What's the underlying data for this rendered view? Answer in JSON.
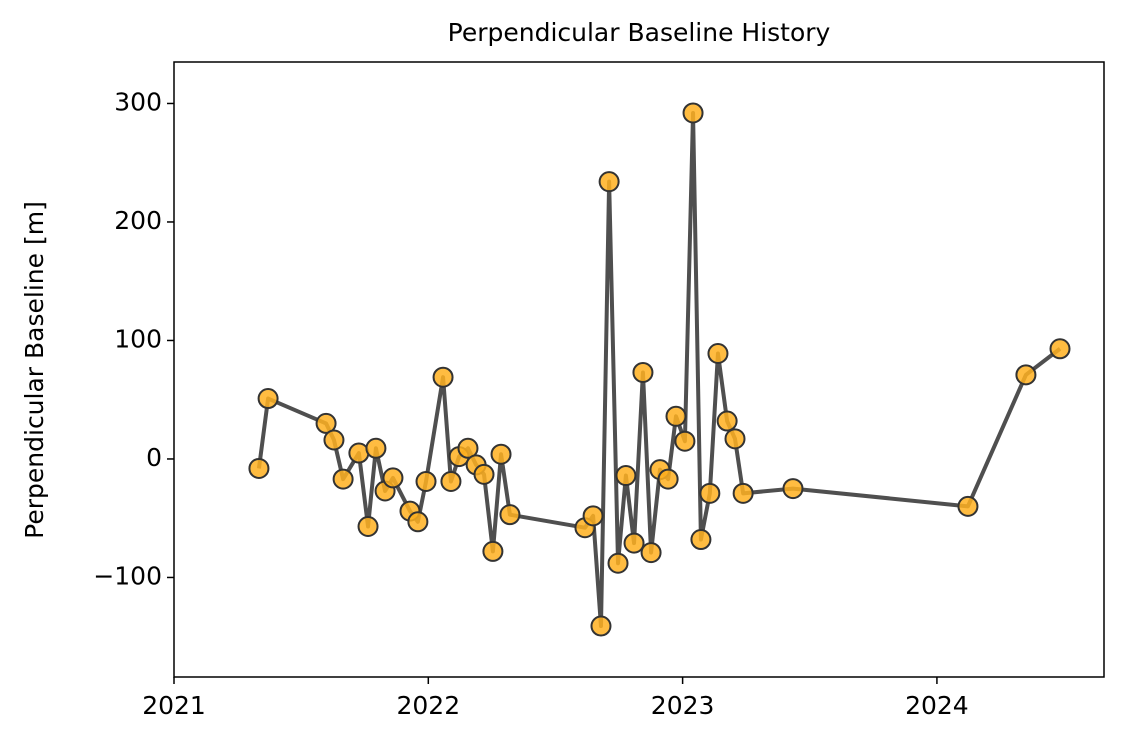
{
  "chart_data": {
    "type": "line",
    "title": "Perpendicular Baseline History",
    "ylabel": "Perpendicular Baseline [m]",
    "x": [
      2021.334,
      2021.37,
      2021.598,
      2021.629,
      2021.665,
      2021.727,
      2021.763,
      2021.794,
      2021.83,
      2021.861,
      2021.928,
      2021.959,
      2021.991,
      2022.058,
      2022.089,
      2022.121,
      2022.156,
      2022.188,
      2022.219,
      2022.254,
      2022.286,
      2022.321,
      2022.616,
      2022.648,
      2022.679,
      2022.711,
      2022.746,
      2022.777,
      2022.809,
      2022.844,
      2022.876,
      2022.911,
      2022.943,
      2022.974,
      2023.009,
      2023.041,
      2023.072,
      2023.107,
      2023.139,
      2023.175,
      2023.206,
      2023.238,
      2023.434,
      2024.122,
      2024.35,
      2024.484
    ],
    "series": [
      {
        "color": "#ffb020",
        "line_color": "#3c3c3c",
        "values": [
          -8,
          51,
          30,
          16,
          -17,
          5,
          -57,
          9,
          -27,
          -16,
          -44,
          -53,
          -19,
          69,
          -19,
          2,
          9,
          -5,
          -13,
          -78,
          4,
          -47,
          -58,
          -48,
          -141,
          234,
          -88,
          -14,
          -71,
          73,
          -79,
          -9,
          -17,
          36,
          15,
          292,
          -68,
          -29,
          89,
          32,
          17,
          -29,
          -25,
          -40,
          71,
          93
        ]
      }
    ],
    "xlim": [
      2021,
      2024.657
    ],
    "xticks": [
      2021,
      2022,
      2023,
      2024
    ],
    "ylim": [
      -184,
      335
    ],
    "yticks": [
      {
        "value": -100,
        "label": "−100"
      },
      0,
      100,
      200,
      300
    ]
  }
}
